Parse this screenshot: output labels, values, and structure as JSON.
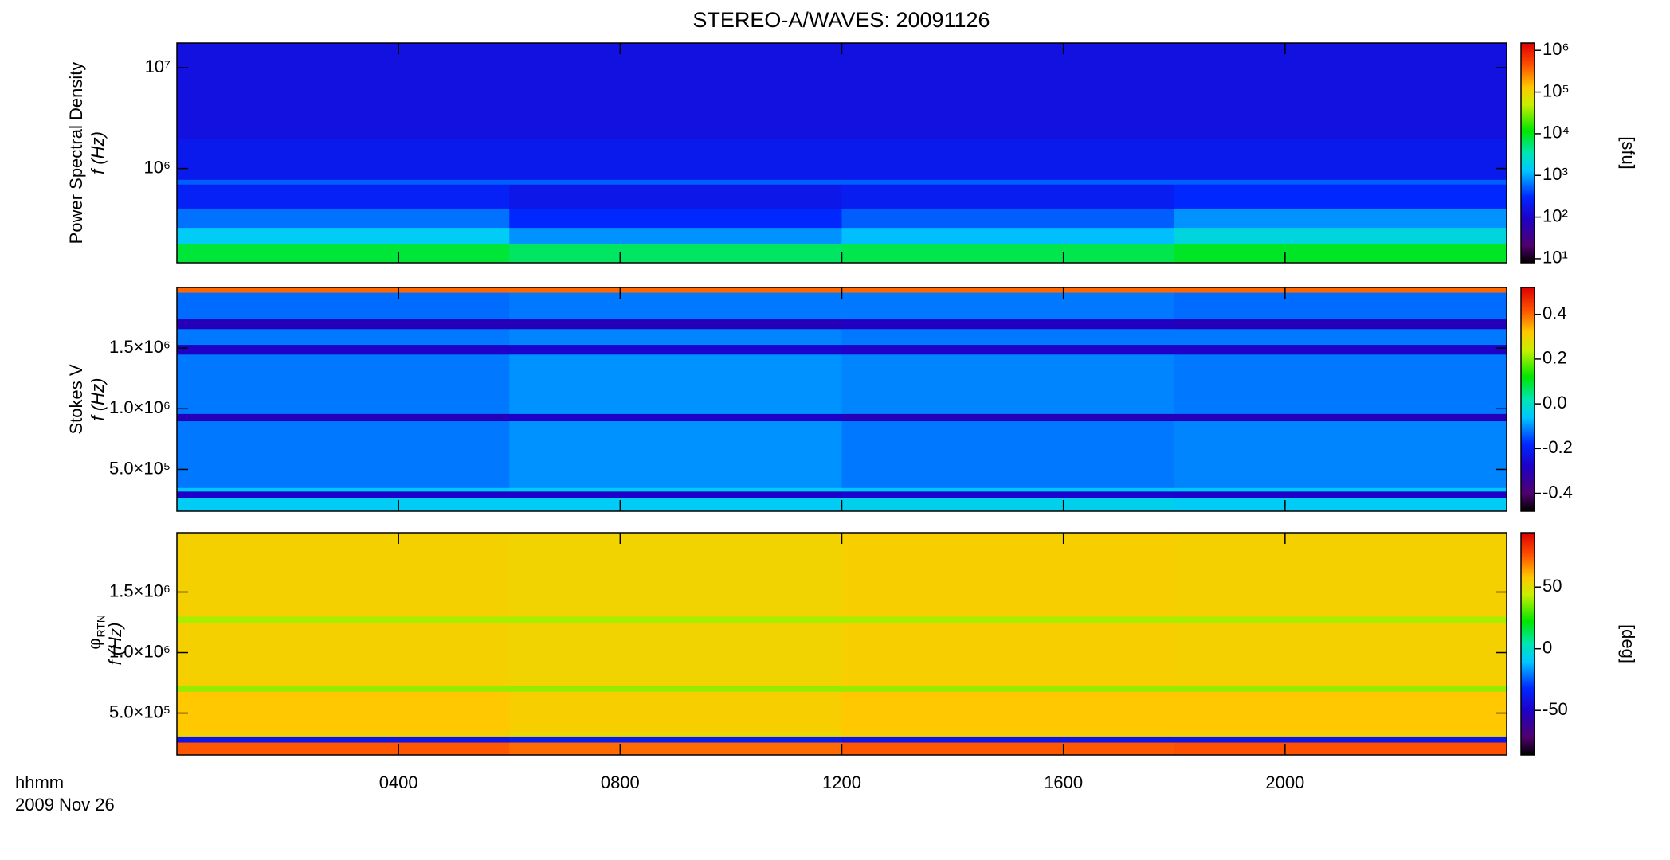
{
  "chart_data": {
    "type": "heatmap",
    "title": "STEREO-A/WAVES: 20091126",
    "x_label": "hhmm",
    "x_sublabel": "2009 Nov 26",
    "colormap": "rainbow",
    "xlim": [
      0,
      24
    ],
    "xticks": [
      {
        "value": 4,
        "label": "0400"
      },
      {
        "value": 8,
        "label": "0800"
      },
      {
        "value": 12,
        "label": "1200"
      },
      {
        "value": 16,
        "label": "1600"
      },
      {
        "value": 20,
        "label": "2000"
      }
    ],
    "x_bins": [
      0,
      6,
      12,
      18,
      24
    ],
    "panels": [
      {
        "ylabel": "Power Spectral Density",
        "ylabel2": "f (Hz)",
        "ylog": true,
        "ylim": [
          116000,
          17600000
        ],
        "yticks": [
          {
            "value": 1000000,
            "label": "10⁶"
          },
          {
            "value": 10000000,
            "label": "10⁷"
          }
        ],
        "y_bins": [
          116000,
          180000,
          260000,
          400000,
          700000,
          780000,
          2000000,
          17600000
        ],
        "z": [
          [
            8000,
            6000,
            7000,
            9000
          ],
          [
            1500,
            800,
            1200,
            2000
          ],
          [
            600,
            300,
            500,
            800
          ],
          [
            250,
            180,
            220,
            300
          ],
          [
            500,
            500,
            500,
            500
          ],
          [
            200,
            200,
            200,
            200
          ],
          [
            150,
            150,
            150,
            150
          ]
        ],
        "clog": true,
        "clim": [
          8,
          1500000
        ],
        "cticks": [
          {
            "value": 10,
            "label": "10¹"
          },
          {
            "value": 100,
            "label": "10²"
          },
          {
            "value": 1000,
            "label": "10³"
          },
          {
            "value": 10000,
            "label": "10⁴"
          },
          {
            "value": 100000,
            "label": "10⁵"
          },
          {
            "value": 1000000,
            "label": "10⁶"
          }
        ],
        "clabel": "[sfu]"
      },
      {
        "ylabel": "Stokes V",
        "ylabel2": "f (Hz)",
        "ylog": false,
        "ylim": [
          155000,
          2000000
        ],
        "yticks": [
          {
            "value": 500000,
            "label": "5.0×10⁵"
          },
          {
            "value": 1000000,
            "label": "1.0×10⁶"
          },
          {
            "value": 1500000,
            "label": "1.5×10⁶"
          }
        ],
        "y_bins": [
          155000,
          270000,
          320000,
          350000,
          900000,
          960000,
          1450000,
          1530000,
          1660000,
          1740000,
          1960000,
          2000000
        ],
        "z": [
          [
            -0.05,
            -0.05,
            -0.04,
            -0.05
          ],
          [
            -0.28,
            -0.28,
            -0.27,
            -0.28
          ],
          [
            -0.06,
            -0.05,
            -0.06,
            -0.06
          ],
          [
            -0.12,
            -0.1,
            -0.12,
            -0.11
          ],
          [
            -0.3,
            -0.28,
            -0.3,
            -0.3
          ],
          [
            -0.12,
            -0.1,
            -0.11,
            -0.12
          ],
          [
            -0.28,
            -0.27,
            -0.28,
            -0.28
          ],
          [
            -0.12,
            -0.11,
            -0.12,
            -0.12
          ],
          [
            -0.3,
            -0.3,
            -0.29,
            -0.3
          ],
          [
            -0.13,
            -0.12,
            -0.12,
            -0.13
          ],
          [
            0.4,
            0.4,
            0.4,
            0.4
          ]
        ],
        "clog": false,
        "clim": [
          -0.48,
          0.52
        ],
        "cticks": [
          -0.4,
          -0.2,
          {
            "value": 0,
            "label": "0.0"
          },
          0.2,
          0.4
        ]
      },
      {
        "ylabel": "φ",
        "ylabel_sub": "RTN",
        "ylabel2": "f (Hz)",
        "ylog": false,
        "ylim": [
          155000,
          1990000
        ],
        "yticks": [
          {
            "value": 500000,
            "label": "5.0×10⁵"
          },
          {
            "value": 1000000,
            "label": "1.0×10⁶"
          },
          {
            "value": 1500000,
            "label": "1.5×10⁶"
          }
        ],
        "y_bins": [
          155000,
          260000,
          310000,
          350000,
          680000,
          730000,
          1250000,
          1300000,
          1990000
        ],
        "z": [
          [
            75,
            72,
            75,
            76
          ],
          [
            -40,
            -38,
            -40,
            -40
          ],
          [
            55,
            52,
            56,
            55
          ],
          [
            58,
            56,
            58,
            58
          ],
          [
            38,
            38,
            38,
            38
          ],
          [
            55,
            54,
            56,
            55
          ],
          [
            40,
            40,
            40,
            40
          ],
          [
            55,
            54,
            56,
            55
          ]
        ],
        "clog": false,
        "clim": [
          -86,
          94
        ],
        "cticks": [
          -50,
          0,
          50
        ],
        "clabel": "[deg]"
      }
    ]
  }
}
